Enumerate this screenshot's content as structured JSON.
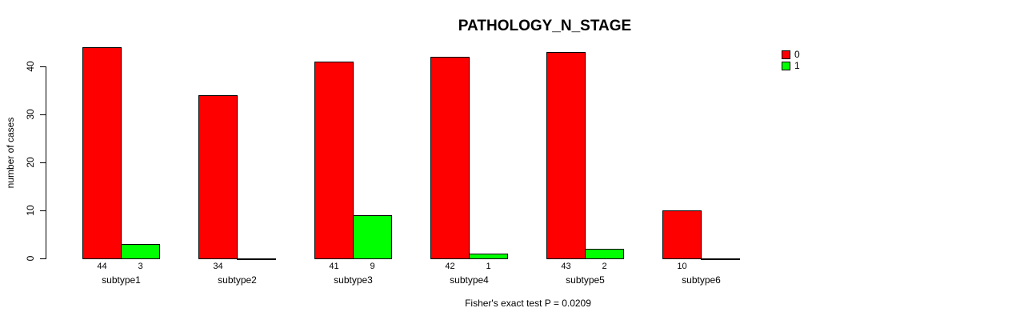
{
  "figure": {
    "background": "#ffffff"
  },
  "chart_data": {
    "type": "bar",
    "title": "PATHOLOGY_N_STAGE",
    "ylabel": "number of cases",
    "xlabel": "",
    "annotation": "Fisher's exact test P = 0.0209",
    "categories": [
      "subtype1",
      "subtype2",
      "subtype3",
      "subtype4",
      "subtype5",
      "subtype6"
    ],
    "series": [
      {
        "name": "0",
        "color": "#ff0000",
        "values": [
          44,
          34,
          41,
          42,
          43,
          10
        ]
      },
      {
        "name": "1",
        "color": "#00ff00",
        "values": [
          3,
          0,
          9,
          1,
          2,
          0
        ]
      }
    ],
    "ylim": [
      0,
      44
    ],
    "yticks": [
      0,
      10,
      20,
      30,
      40
    ],
    "grid": false,
    "legend_position": "top-right",
    "bar_value_labels": "counts shown below each bar, only for nonzero values",
    "zero_value_rendering": "flat baseline segment, no label",
    "colors": {
      "axis": "#000000",
      "text": "#000000"
    }
  }
}
